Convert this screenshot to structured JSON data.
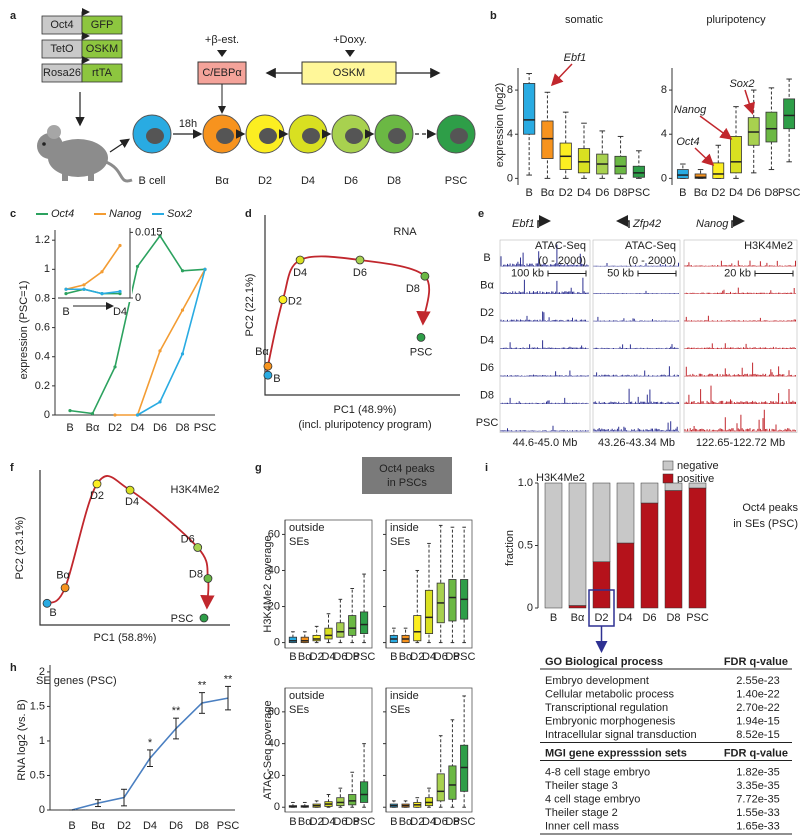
{
  "panel_labels": [
    "a",
    "b",
    "c",
    "d",
    "e",
    "f",
    "g",
    "h",
    "i"
  ],
  "a": {
    "constructs": [
      [
        "Oct4",
        "GFP"
      ],
      [
        "TetO",
        "OSKM"
      ],
      [
        "Rosa26",
        "rtTA"
      ]
    ],
    "treatment1": "+β-est.",
    "factor1": "C/EBPα",
    "treatment2": "+Doxy.",
    "factor2": "OSKM",
    "time": "18h",
    "stages": [
      "B cell",
      "Bα",
      "D2",
      "D4",
      "D6",
      "D8",
      "PSC"
    ],
    "stage_colors": [
      "#29abe2",
      "#f7931e",
      "#fcee21",
      "#d9e021",
      "#a8d14f",
      "#6bb844",
      "#2e9e48"
    ]
  },
  "b": {
    "type": "box",
    "ylabel": "expression (log2)",
    "ylim": [
      -0.6,
      10
    ],
    "yticks": [
      0,
      4,
      8
    ],
    "categories": [
      "B",
      "Bα",
      "D2",
      "D4",
      "D6",
      "D8",
      "PSC"
    ],
    "colors": [
      "#29abe2",
      "#f7931e",
      "#fcee21",
      "#d9e021",
      "#a8d14f",
      "#6bb844",
      "#2e9e48"
    ],
    "charts": [
      {
        "title": "somatic",
        "boxes": [
          [
            0.3,
            4,
            5.3,
            8.6,
            9.5
          ],
          [
            0,
            1.8,
            3.6,
            5.2,
            7.8
          ],
          [
            0,
            0.8,
            2,
            3.2,
            6
          ],
          [
            0,
            0.5,
            1.5,
            2.7,
            5
          ],
          [
            0,
            0.4,
            1.3,
            2.2,
            4.3
          ],
          [
            0,
            0.4,
            1.1,
            2,
            3.8
          ],
          [
            0,
            0.1,
            0.5,
            1.1,
            2.5
          ]
        ]
      },
      {
        "title": "pluripotency",
        "boxes": [
          [
            0,
            0,
            0.3,
            0.8,
            1.3
          ],
          [
            0,
            0,
            0.1,
            0.4,
            0.8
          ],
          [
            0,
            0,
            0.4,
            1.4,
            3
          ],
          [
            0,
            0.5,
            1.5,
            3.8,
            6.5
          ],
          [
            0.5,
            3,
            4.2,
            5.5,
            8
          ],
          [
            0.8,
            3.3,
            4.5,
            6,
            8.2
          ],
          [
            1.5,
            4.5,
            5.7,
            7.2,
            9
          ]
        ]
      }
    ],
    "annotations": [
      "Ebf1",
      "Oct4",
      "Nanog",
      "Sox2"
    ]
  },
  "c": {
    "type": "line",
    "ylabel": "expression (PSC=1)",
    "categories": [
      "B",
      "Bα",
      "D2",
      "D4",
      "D6",
      "D8",
      "PSC"
    ],
    "ylim": [
      0,
      1.27
    ],
    "yticks": [
      0,
      0.2,
      0.4,
      0.6,
      0.8,
      1,
      1.2
    ],
    "series": [
      {
        "name": "Oct4",
        "color": "#2ca25f",
        "values": [
          0.03,
          0.01,
          0.33,
          1.02,
          1.23,
          0.99,
          1.0
        ]
      },
      {
        "name": "Nanog",
        "color": "#f39c33",
        "values": [
          null,
          null,
          0,
          0,
          0.44,
          0.72,
          1.0
        ]
      },
      {
        "name": "Sox2",
        "color": "#29abe2",
        "values": [
          null,
          null,
          null,
          0,
          0.09,
          0.42,
          1.0
        ]
      }
    ],
    "inset": {
      "categories": [
        "B",
        null,
        null,
        "D4"
      ],
      "ylim": [
        0,
        0.016
      ],
      "yticks": [
        0,
        0.015
      ],
      "series": [
        {
          "values": [
            0.001,
            0.002,
            0.001,
            0.001
          ]
        },
        {
          "values": [
            0.002,
            0.003,
            0.006,
            0.012
          ]
        },
        {
          "values": [
            0.002,
            0.002,
            0.001,
            0.0015
          ]
        }
      ]
    }
  },
  "d": {
    "type": "scatter",
    "title": "RNA",
    "xlabel": "PC1 (48.9%)",
    "xlabel_note": "(incl. pluripotency program)",
    "ylabel": "PC2 (22.1%)",
    "xlim": [
      0,
      100
    ],
    "ylim": [
      0,
      100
    ],
    "labels": [
      "B",
      "Bα",
      "D2",
      "D4",
      "D6",
      "D8",
      "PSC"
    ],
    "x": [
      1.5,
      1.5,
      9.2,
      18,
      48.7,
      82,
      80
    ],
    "y": [
      11,
      16,
      53,
      75,
      75,
      66,
      32
    ],
    "colors": [
      "#29abe2",
      "#f7931e",
      "#fcee21",
      "#d9e021",
      "#a8d14f",
      "#6bb844",
      "#2e9e48"
    ]
  },
  "e": {
    "rows": [
      "B",
      "Bα",
      "D2",
      "D4",
      "D6",
      "D8",
      "PSC"
    ],
    "columns": [
      {
        "gene": "Ebf1",
        "assay": "ATAC-Seq",
        "range": "(0 - 2000)",
        "scale": "100 kb",
        "region": "44.6-45.0 Mb",
        "color": "#2e3192"
      },
      {
        "gene": "Zfp42",
        "assay": "ATAC-Seq",
        "range": "(0 - 2000)",
        "scale": "50 kb",
        "region": "43.26-43.34 Mb",
        "color": "#2e3192"
      },
      {
        "gene": "Nanog",
        "assay": "H3K4Me2",
        "scale": "20 kb",
        "region": "122.65-122.72 Mb",
        "color": "#c1272d"
      }
    ]
  },
  "f": {
    "type": "scatter",
    "title": "H3K4Me2",
    "xlabel": "PC1 (58.8%)",
    "ylabel": "PC2 (23.1%)",
    "xlim": [
      0,
      100
    ],
    "ylim": [
      0,
      100
    ],
    "labels": [
      "B",
      "Bα",
      "D2",
      "D4",
      "D6",
      "D8",
      "PSC"
    ],
    "x": [
      3.7,
      13.2,
      30,
      47.4,
      83,
      88.4,
      86.3
    ],
    "y": [
      14,
      24,
      91,
      87,
      50,
      30,
      4.5
    ],
    "colors": [
      "#29abe2",
      "#f7931e",
      "#fcee21",
      "#d9e021",
      "#a8d14f",
      "#6bb844",
      "#2e9e48"
    ]
  },
  "g": {
    "type": "box",
    "header": [
      "Oct4 peaks",
      "in PSCs"
    ],
    "categories": [
      "B",
      "Bα",
      "D2",
      "D4",
      "D6",
      "D8",
      "PSC"
    ],
    "colors": [
      "#29abe2",
      "#f7931e",
      "#fcee21",
      "#d9e021",
      "#a8d14f",
      "#6bb844",
      "#2e9e48"
    ],
    "rows": [
      {
        "ylabel": "H3K4Me2 coverage",
        "ylim": [
          -3,
          68
        ],
        "yticks": [
          0,
          20,
          40,
          60
        ],
        "charts": [
          {
            "title": [
              "outside",
              "SEs"
            ],
            "boxes": [
              [
                0,
                0,
                1,
                3,
                6
              ],
              [
                0,
                0,
                1,
                3,
                6
              ],
              [
                0,
                1,
                2,
                4,
                9
              ],
              [
                0,
                2,
                4,
                8,
                16
              ],
              [
                0,
                3,
                6,
                11,
                24
              ],
              [
                0,
                4,
                8,
                15,
                30
              ],
              [
                0,
                5,
                10,
                17,
                38
              ]
            ]
          },
          {
            "title": [
              "inside",
              "SEs"
            ],
            "boxes": [
              [
                0,
                0,
                2,
                4,
                8
              ],
              [
                0,
                0,
                2,
                4,
                8
              ],
              [
                0,
                1,
                6,
                15,
                40
              ],
              [
                0,
                5,
                14,
                29,
                55
              ],
              [
                0,
                11,
                22,
                33,
                65
              ],
              [
                0,
                12,
                25,
                35,
                64
              ],
              [
                0,
                13,
                24,
                35,
                64
              ]
            ]
          }
        ]
      },
      {
        "ylabel": "ATAC-Seq coverage",
        "ylim": [
          -3,
          75
        ],
        "yticks": [
          0,
          20,
          40,
          60
        ],
        "charts": [
          {
            "title": [
              "outside",
              "SEs"
            ],
            "boxes": [
              [
                0,
                0,
                0.5,
                1,
                3
              ],
              [
                0,
                0,
                0.5,
                1,
                3
              ],
              [
                0,
                0,
                1,
                2,
                4
              ],
              [
                0,
                0.5,
                2,
                3.5,
                8
              ],
              [
                0,
                1,
                3,
                6,
                12
              ],
              [
                0,
                1.5,
                4,
                8,
                22
              ],
              [
                0,
                3,
                8,
                16,
                40
              ]
            ]
          },
          {
            "title": [
              "inside",
              "SEs"
            ],
            "boxes": [
              [
                0,
                0,
                1,
                2,
                4
              ],
              [
                0,
                0,
                1,
                2,
                4
              ],
              [
                0,
                0,
                1.5,
                3,
                6
              ],
              [
                0,
                1,
                3,
                6,
                12
              ],
              [
                0,
                4,
                10,
                21,
                45
              ],
              [
                0,
                5,
                14,
                26,
                55
              ],
              [
                0,
                10,
                25,
                39,
                70
              ]
            ]
          }
        ]
      }
    ]
  },
  "h": {
    "type": "line",
    "title": "SE genes (PSC)",
    "ylabel": "RNA log2 (vs. B)",
    "categories": [
      "B",
      "Bα",
      "D2",
      "D4",
      "D6",
      "D8",
      "PSC"
    ],
    "values": [
      0,
      0.1,
      0.18,
      0.75,
      1.18,
      1.55,
      1.62
    ],
    "errors": [
      0,
      0.05,
      0.12,
      0.12,
      0.15,
      0.15,
      0.17
    ],
    "significance": [
      null,
      null,
      null,
      "*",
      "**",
      "**",
      "**"
    ],
    "color": "#4a7fc1",
    "ylim": [
      0,
      2.1
    ],
    "yticks": [
      0,
      0.5,
      1,
      1.5,
      2
    ]
  },
  "i": {
    "type": "stacked_bar",
    "title": "H3K4Me2",
    "annotation": [
      "Oct4 peaks",
      "in SEs (PSC)"
    ],
    "ylabel": "fraction",
    "ylim": [
      0,
      1
    ],
    "yticks": [
      0,
      0.5,
      {
        "value": 1,
        "label": "1.0"
      }
    ],
    "categories": [
      "B",
      "Bα",
      "D2",
      "D4",
      "D6",
      "D8",
      "PSC"
    ],
    "series": [
      {
        "name": "negative",
        "color": "#c8c8c8",
        "values": [
          1,
          0.98,
          0.63,
          0.48,
          0.16,
          0.06,
          0.04
        ]
      },
      {
        "name": "positive",
        "color": "#b5121b",
        "values": [
          0,
          0.02,
          0.37,
          0.52,
          0.84,
          0.94,
          0.96
        ]
      }
    ],
    "tables": [
      {
        "header": [
          "GO Biological process",
          "FDR q-value"
        ],
        "rows": [
          [
            "Embryo development",
            "2.55e-23"
          ],
          [
            "Cellular metabolic process",
            "1.40e-22"
          ],
          [
            "Transcriptional regulation",
            "2.70e-22"
          ],
          [
            "Embryonic morphogenesis",
            "1.94e-15"
          ],
          [
            "Intracellular signal transduction",
            "8.52e-15"
          ]
        ]
      },
      {
        "header": [
          "MGI gene expresssion sets",
          "FDR q-value"
        ],
        "rows": [
          [
            "4-8 cell stage embryo",
            "1.82e-35"
          ],
          [
            "Theiler stage 3",
            "3.35e-35"
          ],
          [
            "4 cell stage embryo",
            "7.72e-35"
          ],
          [
            "Theiler stage 2",
            "1.55e-33"
          ],
          [
            "Inner cell mass",
            "1.65e-33"
          ]
        ]
      }
    ]
  }
}
